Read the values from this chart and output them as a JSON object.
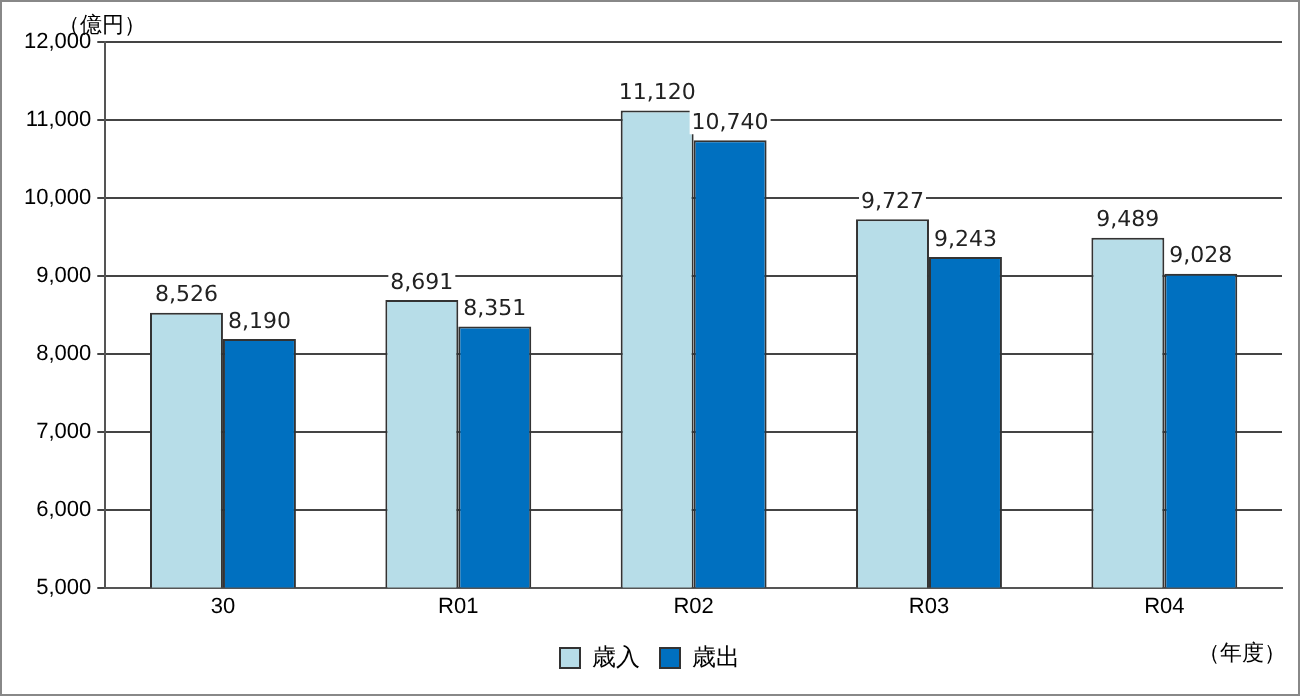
{
  "chart_data": {
    "type": "bar",
    "ylabel": "（億円）",
    "xlabel": "（年度）",
    "categories": [
      "30",
      "R01",
      "R02",
      "R03",
      "R04"
    ],
    "series": [
      {
        "name": "歳入",
        "color": "#b7dde8",
        "values": [
          8526,
          8691,
          11120,
          9727,
          9489
        ],
        "value_labels": [
          "8,526",
          "8,691",
          "11,120",
          "9,727",
          "9,489"
        ]
      },
      {
        "name": "歳出",
        "color": "#0070c0",
        "values": [
          8190,
          8351,
          10740,
          9243,
          9028
        ],
        "value_labels": [
          "8,190",
          "8,351",
          "10,740",
          "9,243",
          "9,028"
        ]
      }
    ],
    "ylim": [
      5000,
      12000
    ],
    "yticks": [
      {
        "value": 5000,
        "label": "5,000"
      },
      {
        "value": 6000,
        "label": "6,000"
      },
      {
        "value": 7000,
        "label": "7,000"
      },
      {
        "value": 8000,
        "label": "8,000"
      },
      {
        "value": 9000,
        "label": "9,000"
      },
      {
        "value": 10000,
        "label": "10,000"
      },
      {
        "value": 11000,
        "label": "11,000"
      },
      {
        "value": 12000,
        "label": "12,000"
      }
    ],
    "grid": "y",
    "legend": "bottom"
  }
}
